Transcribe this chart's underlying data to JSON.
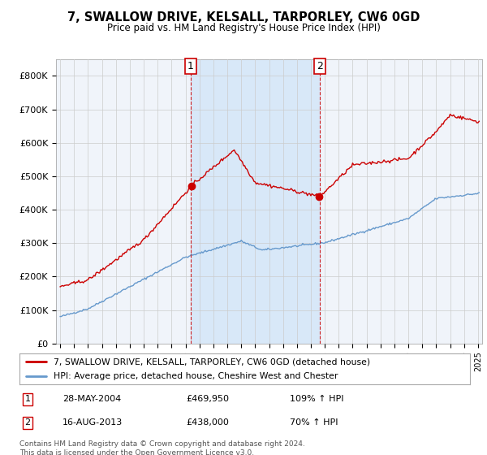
{
  "title": "7, SWALLOW DRIVE, KELSALL, TARPORLEY, CW6 0GD",
  "subtitle": "Price paid vs. HM Land Registry's House Price Index (HPI)",
  "ylim": [
    0,
    850000
  ],
  "yticks": [
    0,
    100000,
    200000,
    300000,
    400000,
    500000,
    600000,
    700000,
    800000
  ],
  "ytick_labels": [
    "£0",
    "£100K",
    "£200K",
    "£300K",
    "£400K",
    "£500K",
    "£600K",
    "£700K",
    "£800K"
  ],
  "xlim_start": 1994.7,
  "xlim_end": 2025.3,
  "sale1_date": 2004.38,
  "sale1_price": 469950,
  "sale1_label": "1",
  "sale1_text": "28-MAY-2004",
  "sale1_price_text": "£469,950",
  "sale1_hpi_text": "109% ↑ HPI",
  "sale2_date": 2013.62,
  "sale2_price": 438000,
  "sale2_label": "2",
  "sale2_text": "16-AUG-2013",
  "sale2_price_text": "£438,000",
  "sale2_hpi_text": "70% ↑ HPI",
  "line1_color": "#cc0000",
  "line2_color": "#6699cc",
  "shade_color": "#ddeeff",
  "bg_color": "#f0f4f8",
  "legend1": "7, SWALLOW DRIVE, KELSALL, TARPORLEY, CW6 0GD (detached house)",
  "legend2": "HPI: Average price, detached house, Cheshire West and Chester",
  "footer": "Contains HM Land Registry data © Crown copyright and database right 2024.\nThis data is licensed under the Open Government Licence v3.0."
}
